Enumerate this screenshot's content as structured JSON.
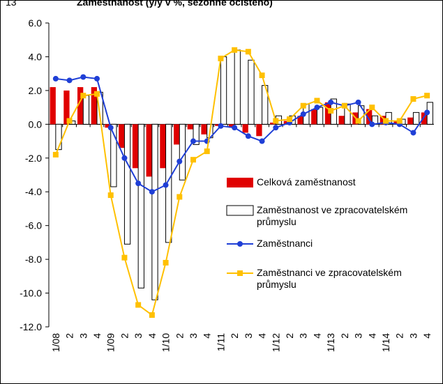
{
  "chart_data": {
    "type": "bar-line",
    "title": "Zaměstnanost (y/y v %, sezónně očištěno)",
    "figure_number": "13",
    "categories": [
      "1/08",
      "2",
      "3",
      "4",
      "1/09",
      "2",
      "3",
      "4",
      "1/10",
      "2",
      "3",
      "4",
      "1/11",
      "2",
      "3",
      "4",
      "1/12",
      "2",
      "3",
      "4",
      "1/13",
      "2",
      "3",
      "4",
      "1/14",
      "2",
      "3",
      "4"
    ],
    "ylim": [
      -12,
      6
    ],
    "yticks": [
      {
        "value": -12,
        "label": "-12.0"
      },
      {
        "value": -10,
        "label": "-10.0"
      },
      {
        "value": -8,
        "label": "-8.0"
      },
      {
        "value": -6,
        "label": "-6.0"
      },
      {
        "value": -4,
        "label": "-4.0"
      },
      {
        "value": -2,
        "label": "-2.0"
      },
      {
        "value": 0,
        "label": "0.0"
      },
      {
        "value": 2,
        "label": "2.0"
      },
      {
        "value": 4,
        "label": "4.0"
      },
      {
        "value": 6,
        "label": "6.0"
      }
    ],
    "series": [
      {
        "name": "Celková zaměstnanost",
        "kind": "bar",
        "color": "#e00000",
        "values": [
          2.2,
          2.0,
          2.2,
          2.2,
          -0.2,
          -1.4,
          -2.6,
          -3.1,
          -2.6,
          -1.2,
          -0.3,
          -0.6,
          -0.1,
          -0.2,
          -0.5,
          -0.7,
          0.1,
          0.2,
          0.5,
          0.9,
          1.3,
          0.5,
          0.7,
          0.9,
          0.5,
          0.2,
          0.4,
          0.7
        ]
      },
      {
        "name": "Zaměstnanost ve zpracovatelském průmyslu",
        "kind": "bar",
        "color": "#ffffff",
        "values": [
          -1.5,
          0.2,
          1.7,
          1.9,
          -3.7,
          -7.1,
          -9.7,
          -10.4,
          -7.0,
          -3.3,
          -1.2,
          -0.8,
          4.0,
          4.4,
          3.8,
          2.3,
          0.5,
          0.5,
          1.2,
          1.0,
          1.5,
          1.2,
          1.1,
          0.5,
          0.7,
          0.3,
          0.7,
          1.3
        ]
      },
      {
        "name": "Zaměstnanci",
        "kind": "line",
        "color": "#1f3fd6",
        "values": [
          2.7,
          2.6,
          2.8,
          2.7,
          -0.2,
          -2.0,
          -3.5,
          -4.0,
          -3.6,
          -2.2,
          -1.0,
          -1.0,
          -0.1,
          -0.2,
          -0.7,
          -1.0,
          -0.2,
          0.1,
          0.6,
          1.0,
          1.3,
          1.1,
          1.3,
          0.0,
          0.1,
          0.0,
          -0.5,
          0.7
        ]
      },
      {
        "name": "Zaměstnanci ve zpracovatelském průmyslu",
        "kind": "line",
        "color": "#ffc000",
        "values": [
          -1.8,
          0.2,
          1.7,
          1.8,
          -4.2,
          -7.9,
          -10.7,
          -11.3,
          -8.2,
          -4.3,
          -2.1,
          -1.6,
          3.9,
          4.4,
          4.3,
          2.9,
          0.2,
          0.3,
          1.1,
          1.4,
          0.8,
          1.1,
          0.2,
          1.0,
          0.2,
          0.2,
          1.5,
          1.7
        ]
      }
    ]
  }
}
